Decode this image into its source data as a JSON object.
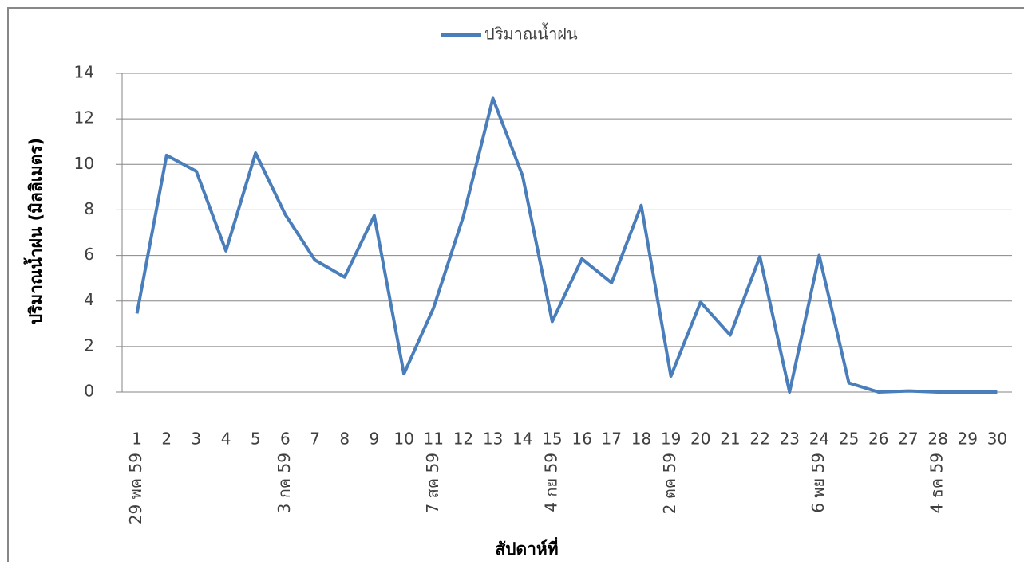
{
  "chart_data": {
    "type": "line",
    "legend_position": "top",
    "y_label": "ปริมาณน้ำฝน (มิลลิเมตร)",
    "x_label": "สัปดาห์ที่",
    "categories": [
      "1",
      "2",
      "3",
      "4",
      "5",
      "6",
      "7",
      "8",
      "9",
      "10",
      "11",
      "12",
      "13",
      "14",
      "15",
      "16",
      "17",
      "18",
      "19",
      "20",
      "21",
      "22",
      "23",
      "24",
      "25",
      "26",
      "27",
      "28",
      "29",
      "30"
    ],
    "category_dates": [
      "29 พค 59",
      null,
      null,
      null,
      null,
      "3 กค 59",
      null,
      null,
      null,
      null,
      "7 สค 59",
      null,
      null,
      null,
      "4 กย 59",
      null,
      null,
      null,
      "2 ตค 59",
      null,
      null,
      null,
      null,
      "6 พย 59",
      null,
      null,
      null,
      "4 ธค 59",
      null,
      null
    ],
    "series": [
      {
        "name": "ปริมาณน้ำฝน",
        "color": "#4a7ebb",
        "values": [
          3.45,
          10.4,
          9.7,
          6.2,
          10.5,
          7.8,
          5.8,
          5.05,
          7.75,
          0.8,
          3.7,
          7.7,
          12.9,
          9.5,
          3.1,
          5.85,
          4.8,
          8.2,
          0.7,
          3.95,
          2.5,
          5.95,
          0,
          6.0,
          0.4,
          0,
          0.05,
          0,
          0,
          0
        ]
      }
    ],
    "ylim": [
      0,
      14
    ],
    "yticks": [
      0,
      2,
      4,
      6,
      8,
      10,
      12,
      14
    ],
    "grid": true
  }
}
